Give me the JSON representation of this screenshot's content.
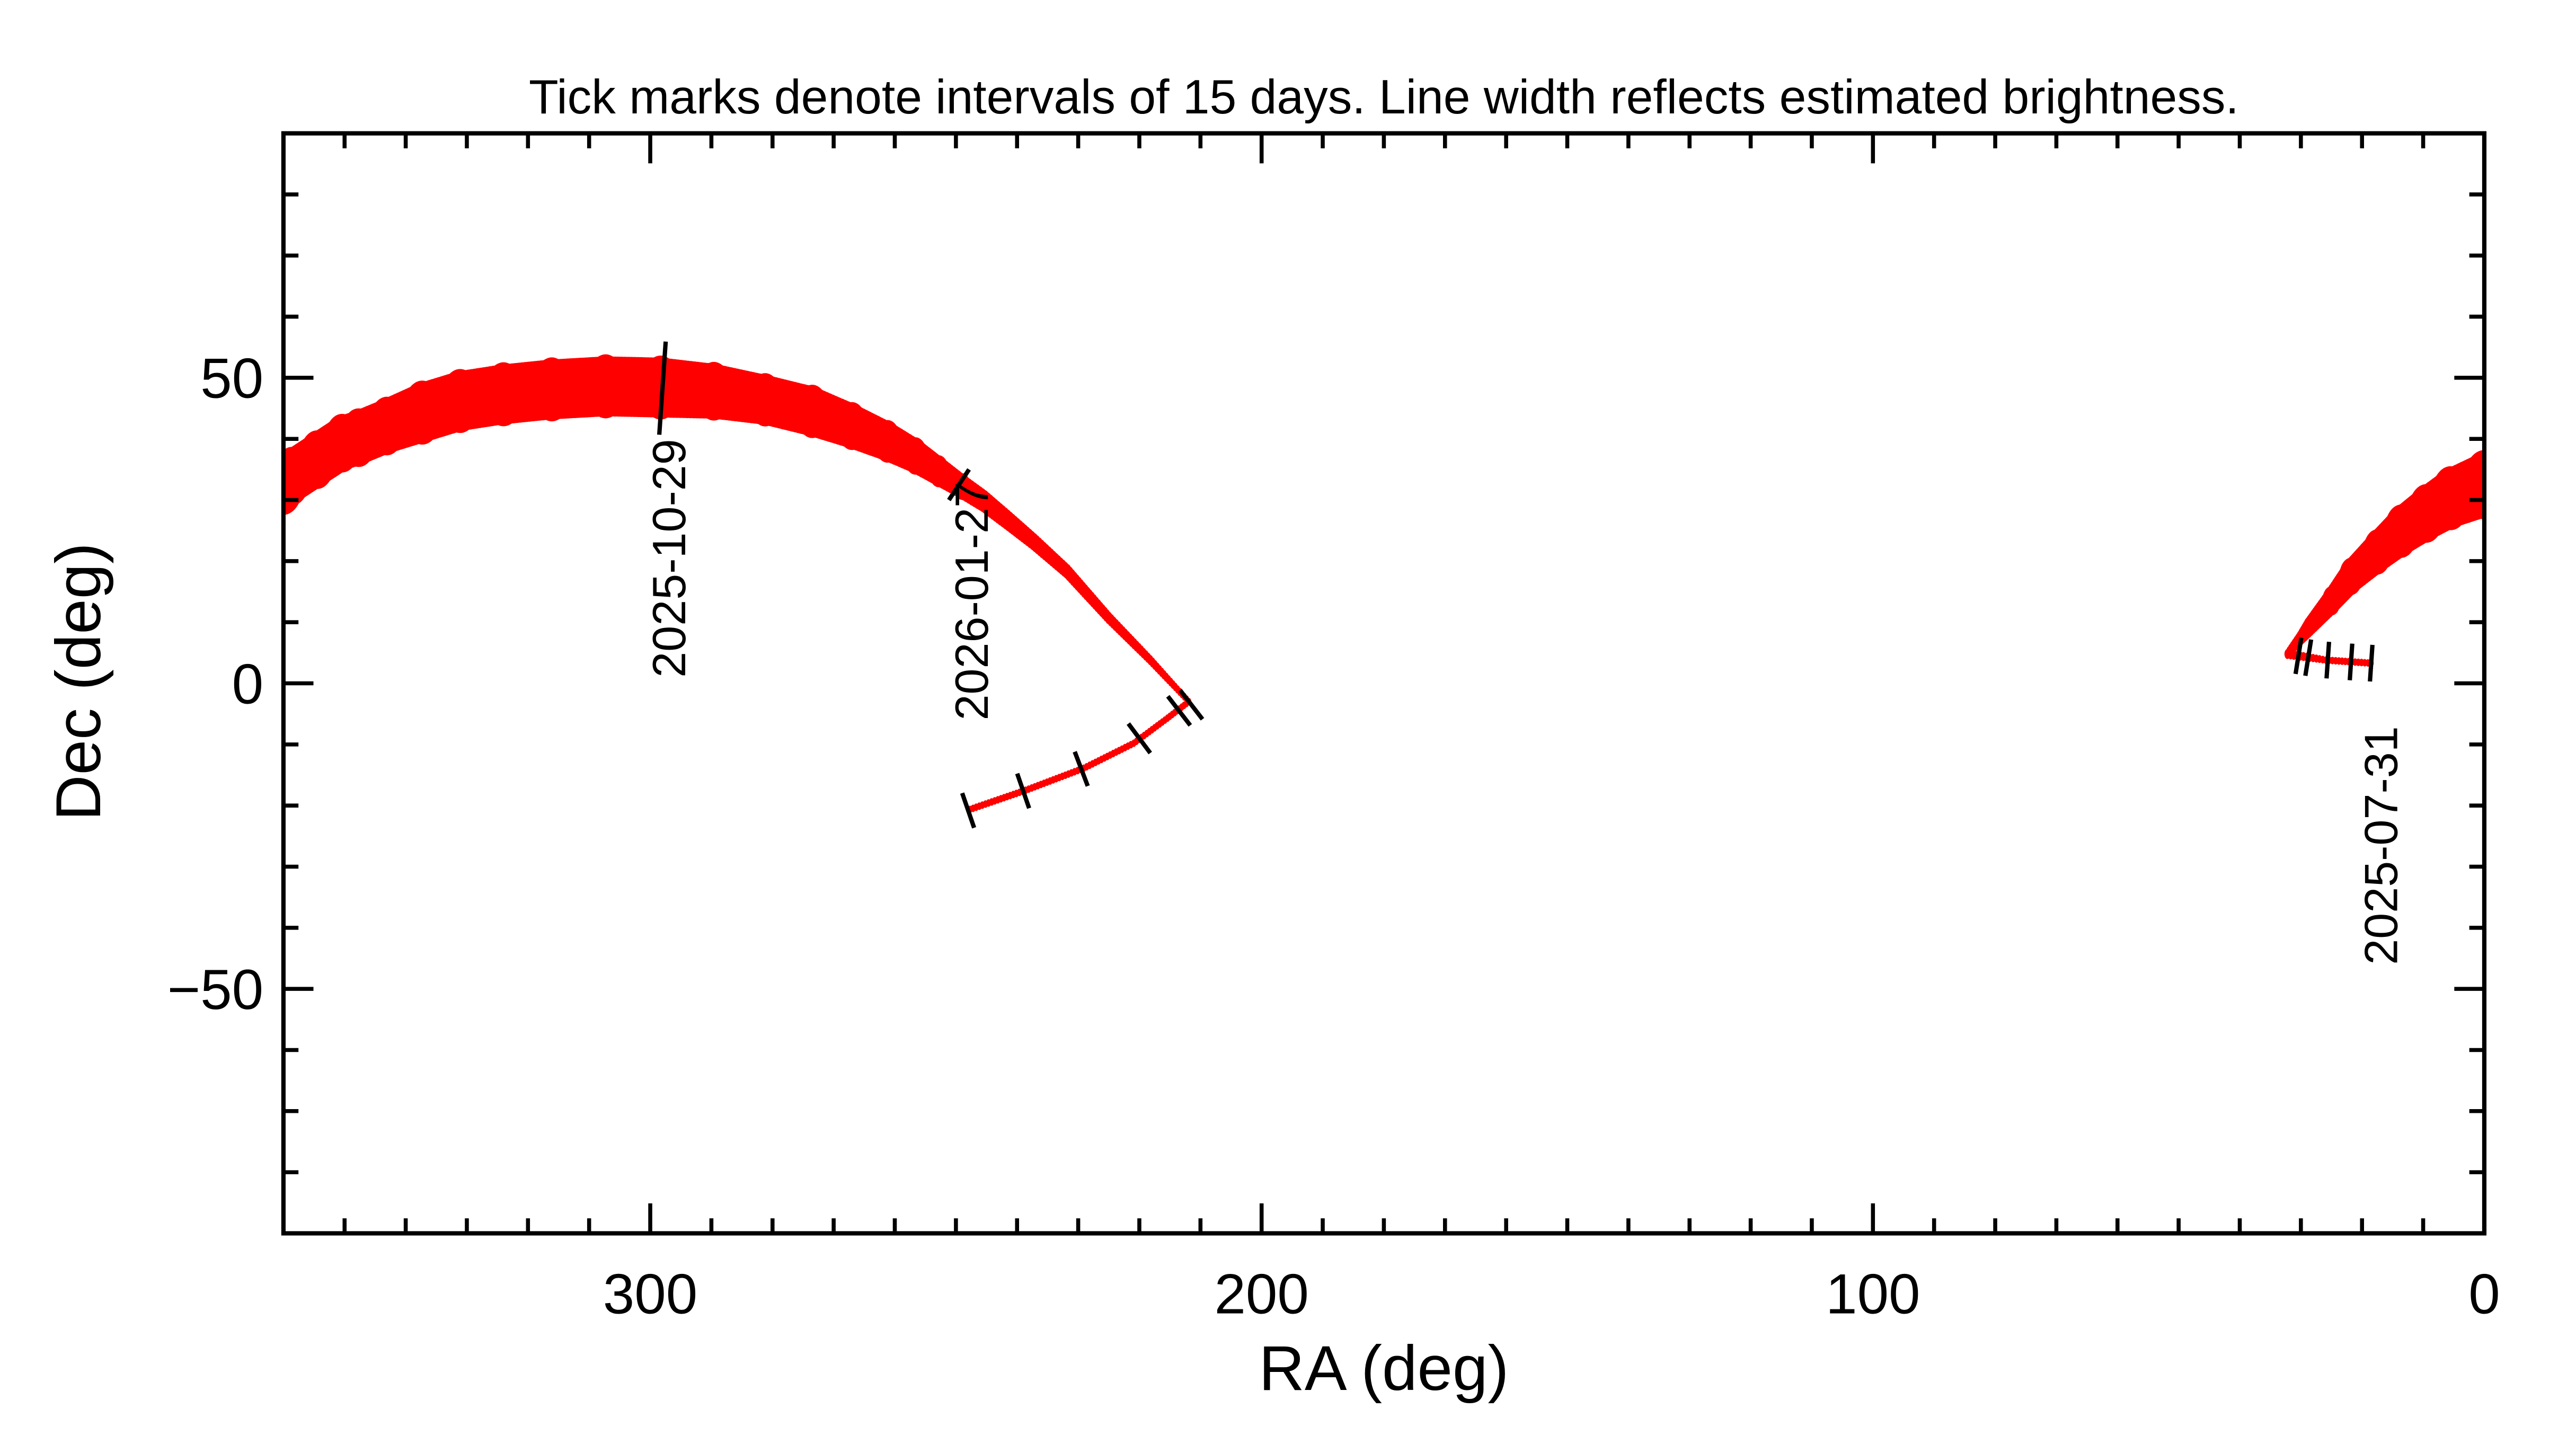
{
  "chart_data": {
    "type": "line",
    "title": "Tick marks denote intervals of 15 days.  Line width reflects estimated brightness.",
    "xlabel": "RA (deg)",
    "ylabel": "Dec (deg)",
    "xlim": [
      360,
      0
    ],
    "ylim": [
      -90,
      90
    ],
    "x_ticks": [
      300,
      200,
      100,
      0
    ],
    "x_tick_labels": [
      "300",
      "200",
      "100",
      "0"
    ],
    "y_ticks": [
      50,
      0,
      -50
    ],
    "y_tick_labels": [
      "50",
      "0",
      "−50"
    ],
    "grid": false,
    "line_color": "#ff0000",
    "tick_color": "#000000",
    "track": [
      {
        "ra": 18.5,
        "dec": 3.3,
        "width": 3
      },
      {
        "ra": 25.9,
        "dec": 3.8,
        "width": 3
      },
      {
        "ra": 32.2,
        "dec": 4.8,
        "width": 4
      },
      {
        "ra": 30.0,
        "dec": 7.5,
        "width": 6
      },
      {
        "ra": 28.6,
        "dec": 9.3,
        "width": 8
      },
      {
        "ra": 25.0,
        "dec": 13.5,
        "width": 11
      },
      {
        "ra": 21.8,
        "dec": 17.5,
        "width": 14
      },
      {
        "ra": 17.5,
        "dec": 21.5,
        "width": 17
      },
      {
        "ra": 13.6,
        "dec": 24.9,
        "width": 20
      },
      {
        "ra": 9.5,
        "dec": 27.8,
        "width": 22
      },
      {
        "ra": 5.5,
        "dec": 30.3,
        "width": 24
      },
      {
        "ra": 0.0,
        "dec": 32.5,
        "width": 26
      },
      {
        "ra": 360.0,
        "dec": 32.8,
        "width": 24
      },
      {
        "ra": 358.6,
        "dec": 33.9,
        "width": 22
      },
      {
        "ra": 354.5,
        "dec": 36.6,
        "width": 22
      },
      {
        "ra": 350.4,
        "dec": 39.3,
        "width": 22
      },
      {
        "ra": 347.7,
        "dec": 40.2,
        "width": 22
      },
      {
        "ra": 343.1,
        "dec": 42.1,
        "width": 22
      },
      {
        "ra": 337.3,
        "dec": 44.3,
        "width": 24
      },
      {
        "ra": 331.1,
        "dec": 46.2,
        "width": 24
      },
      {
        "ra": 324.0,
        "dec": 47.3,
        "width": 24
      },
      {
        "ra": 316.1,
        "dec": 48.1,
        "width": 24
      },
      {
        "ra": 307.3,
        "dec": 48.6,
        "width": 24
      },
      {
        "ra": 298.3,
        "dec": 48.4,
        "width": 24
      },
      {
        "ra": 289.6,
        "dec": 47.8,
        "width": 22
      },
      {
        "ra": 281.2,
        "dec": 46.4,
        "width": 20
      },
      {
        "ra": 273.5,
        "dec": 44.5,
        "width": 20
      },
      {
        "ra": 267.0,
        "dec": 42.1,
        "width": 18
      },
      {
        "ra": 261.2,
        "dec": 39.6,
        "width": 16
      },
      {
        "ra": 256.6,
        "dec": 37.2,
        "width": 14
      },
      {
        "ra": 252.8,
        "dec": 34.7,
        "width": 12
      },
      {
        "ra": 249.0,
        "dec": 32.2,
        "width": 10
      },
      {
        "ra": 245.4,
        "dec": 29.8,
        "width": 9
      },
      {
        "ra": 241.3,
        "dec": 26.5,
        "width": 8
      },
      {
        "ra": 237.3,
        "dec": 23.2,
        "width": 7
      },
      {
        "ra": 231.8,
        "dec": 18.3,
        "width": 6
      },
      {
        "ra": 225.0,
        "dec": 10.7,
        "width": 5
      },
      {
        "ra": 218.2,
        "dec": 3.8,
        "width": 4
      },
      {
        "ra": 211.9,
        "dec": -3.0,
        "width": 3
      },
      {
        "ra": 215.4,
        "dec": -5.7,
        "width": 3
      },
      {
        "ra": 220.9,
        "dec": -9.8,
        "width": 3
      },
      {
        "ra": 229.1,
        "dec": -13.9,
        "width": 3
      },
      {
        "ra": 238.6,
        "dec": -17.5,
        "width": 3
      },
      {
        "ra": 248.2,
        "dec": -20.8,
        "width": 3
      }
    ],
    "date_ticks": [
      {
        "ra": 18.5,
        "dec": 3.3
      },
      {
        "ra": 21.8,
        "dec": 3.5
      },
      {
        "ra": 25.6,
        "dec": 3.8
      },
      {
        "ra": 28.8,
        "dec": 4.2
      },
      {
        "ra": 30.4,
        "dec": 4.5
      },
      {
        "ra": 298.0,
        "dec": 48.3
      },
      {
        "ra": 249.5,
        "dec": 32.5
      },
      {
        "ra": 211.5,
        "dec": -3.5
      },
      {
        "ra": 213.5,
        "dec": -4.5
      },
      {
        "ra": 220.0,
        "dec": -9.0
      },
      {
        "ra": 229.5,
        "dec": -14.0
      },
      {
        "ra": 239.0,
        "dec": -17.6
      },
      {
        "ra": 248.0,
        "dec": -20.8
      }
    ],
    "date_labels": [
      {
        "text": "2025-10-29",
        "ra": 297.0,
        "dec": 40
      },
      {
        "text": "2026-01-27",
        "ra": 247.5,
        "dec": 33
      },
      {
        "text": "2025-07-31",
        "ra": 17.0,
        "dec": -7
      }
    ]
  }
}
